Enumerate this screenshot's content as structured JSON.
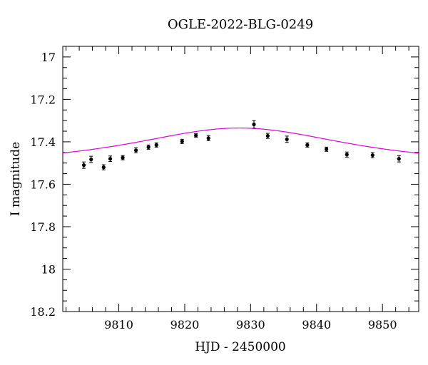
{
  "chart_data": {
    "type": "scatter",
    "title": "OGLE-2022-BLG-0249",
    "xlabel": "HJD - 2450000",
    "ylabel": "I magnitude",
    "xlim": [
      9801.5,
      9855.5
    ],
    "ylim": [
      18.2,
      16.95
    ],
    "y_inverted": true,
    "grid": false,
    "xticks": [
      9810,
      9820,
      9830,
      9840,
      9850
    ],
    "xtick_labels": [
      "9810",
      "9820",
      "9830",
      "9840",
      "9850"
    ],
    "yticks": [
      17,
      17.2,
      17.4,
      17.6,
      17.8,
      18,
      18.2
    ],
    "ytick_labels": [
      "17",
      "17.2",
      "17.4",
      "17.6",
      "17.8",
      "18",
      "18.2"
    ],
    "x_minor_step": 2,
    "y_minor_step": 0.05,
    "colors": {
      "data": "#000000",
      "model": "#e000e0"
    },
    "series": [
      {
        "type": "scatter",
        "x": [
          9804.7,
          9805.8,
          9807.7,
          9808.7,
          9810.6,
          9812.6,
          9814.5,
          9815.7,
          9819.6,
          9821.7,
          9823.6,
          9830.5,
          9832.6,
          9835.5,
          9838.6,
          9841.5,
          9844.6,
          9848.5,
          9852.5
        ],
        "y": [
          17.51,
          17.483,
          17.52,
          17.48,
          17.475,
          17.44,
          17.425,
          17.415,
          17.398,
          17.37,
          17.383,
          17.318,
          17.372,
          17.388,
          17.415,
          17.435,
          17.46,
          17.463,
          17.48
        ],
        "yerr": [
          0.015,
          0.015,
          0.012,
          0.013,
          0.01,
          0.012,
          0.01,
          0.01,
          0.01,
          0.008,
          0.012,
          0.018,
          0.012,
          0.015,
          0.01,
          0.01,
          0.012,
          0.012,
          0.015
        ]
      },
      {
        "type": "line",
        "model": "single-lens",
        "baseline_mag": 17.5,
        "peak_mag": 17.335,
        "t0": 9828.3,
        "tE": 15.5,
        "x_range": [
          9801.5,
          9855.5
        ]
      }
    ]
  }
}
